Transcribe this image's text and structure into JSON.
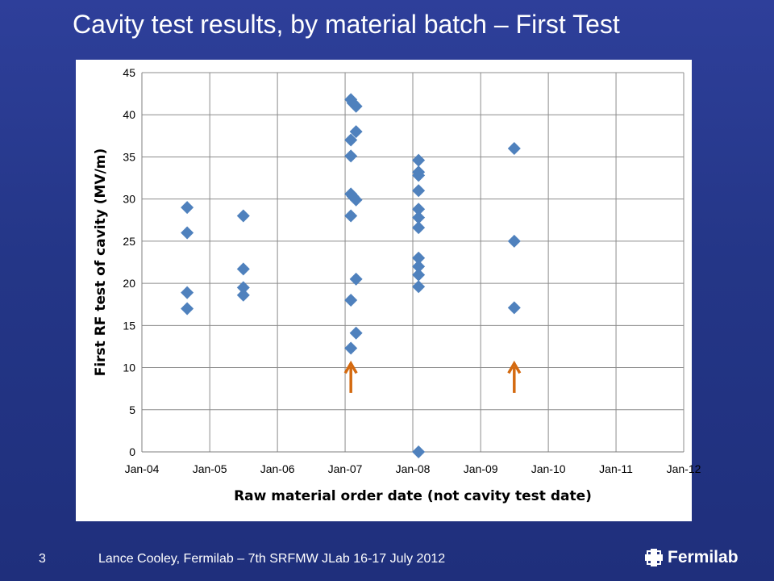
{
  "slide": {
    "title": "Cavity test results, by material batch – First Test",
    "page_number": "3",
    "footer": "Lance Cooley, Fermilab – 7th SRFMW JLab 16-17 July 2012",
    "logo": "Fermilab"
  },
  "colors": {
    "background": "#24368a",
    "marker": "#4f81bd",
    "arrow": "#d46a10",
    "grid": "#8c8c8c"
  },
  "chart_data": {
    "type": "scatter",
    "xlabel": "Raw material order date (not cavity test date)",
    "ylabel": "First RF test of cavity (MV/m)",
    "x_is_date": true,
    "x_ticks": [
      "2004-01-01",
      "2005-01-01",
      "2006-01-01",
      "2007-01-01",
      "2008-01-01",
      "2009-01-01",
      "2010-01-01",
      "2011-01-01",
      "2012-01-01"
    ],
    "x_tick_labels": [
      "Jan-04",
      "Jan-05",
      "Jan-06",
      "Jan-07",
      "Jan-08",
      "Jan-09",
      "Jan-10",
      "Jan-11",
      "Jan-12"
    ],
    "xlim": [
      "2004-01-01",
      "2012-01-01"
    ],
    "ylim": [
      0,
      45
    ],
    "y_ticks": [
      0,
      5,
      10,
      15,
      20,
      25,
      30,
      35,
      40,
      45
    ],
    "grid": true,
    "marker": "diamond",
    "points": [
      {
        "x": "2004-09-01",
        "y": 29
      },
      {
        "x": "2004-09-01",
        "y": 26
      },
      {
        "x": "2004-09-01",
        "y": 18.9
      },
      {
        "x": "2004-09-01",
        "y": 17
      },
      {
        "x": "2005-07-01",
        "y": 28
      },
      {
        "x": "2005-07-01",
        "y": 21.7
      },
      {
        "x": "2005-07-01",
        "y": 19.5
      },
      {
        "x": "2005-07-01",
        "y": 18.6
      },
      {
        "x": "2007-02-01",
        "y": 41.8
      },
      {
        "x": "2007-02-12",
        "y": 41.4
      },
      {
        "x": "2007-03-01",
        "y": 41
      },
      {
        "x": "2007-03-01",
        "y": 38
      },
      {
        "x": "2007-02-01",
        "y": 37
      },
      {
        "x": "2007-02-01",
        "y": 35.1
      },
      {
        "x": "2007-02-01",
        "y": 30.6
      },
      {
        "x": "2007-02-12",
        "y": 30.3
      },
      {
        "x": "2007-03-01",
        "y": 29.9
      },
      {
        "x": "2007-02-01",
        "y": 28
      },
      {
        "x": "2007-03-01",
        "y": 20.5
      },
      {
        "x": "2007-02-01",
        "y": 18
      },
      {
        "x": "2007-03-01",
        "y": 14.1
      },
      {
        "x": "2007-02-01",
        "y": 12.3
      },
      {
        "x": "2008-02-01",
        "y": 34.6
      },
      {
        "x": "2008-02-01",
        "y": 33.2
      },
      {
        "x": "2008-02-01",
        "y": 32.8
      },
      {
        "x": "2008-02-01",
        "y": 31
      },
      {
        "x": "2008-02-01",
        "y": 28.8
      },
      {
        "x": "2008-02-01",
        "y": 27.8
      },
      {
        "x": "2008-02-01",
        "y": 26.6
      },
      {
        "x": "2008-02-01",
        "y": 23
      },
      {
        "x": "2008-02-01",
        "y": 22
      },
      {
        "x": "2008-02-01",
        "y": 21
      },
      {
        "x": "2008-02-01",
        "y": 19.6
      },
      {
        "x": "2008-02-01",
        "y": 0
      },
      {
        "x": "2009-07-01",
        "y": 36
      },
      {
        "x": "2009-07-01",
        "y": 25
      },
      {
        "x": "2009-07-01",
        "y": 17.1
      }
    ],
    "annotations": [
      {
        "type": "arrow-up",
        "x": "2007-02-01",
        "y_from": 7,
        "y_to": 10.5
      },
      {
        "type": "arrow-up",
        "x": "2009-07-01",
        "y_from": 7,
        "y_to": 10.5
      }
    ]
  }
}
